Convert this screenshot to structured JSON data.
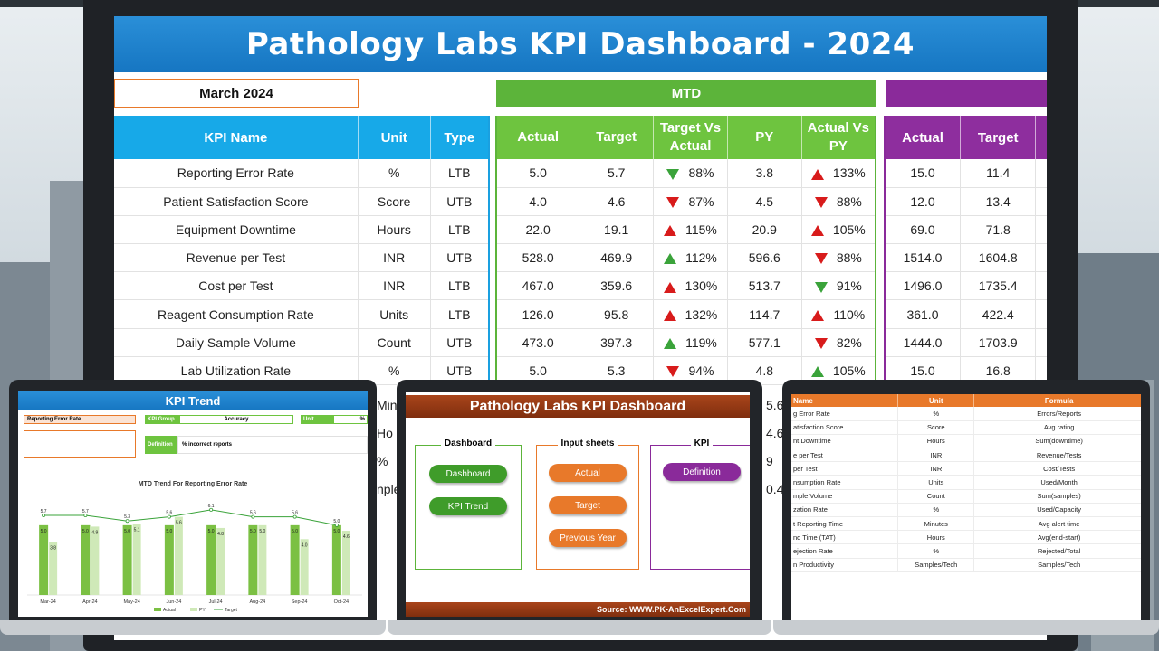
{
  "main": {
    "title": "Pathology Labs KPI Dashboard - 2024",
    "month": "March 2024",
    "mtd_label": "MTD",
    "headers": {
      "kpi_name": "KPI Name",
      "unit": "Unit",
      "type": "Type",
      "actual": "Actual",
      "target": "Target",
      "tvsa": "Target Vs Actual",
      "py": "PY",
      "avspy": "Actual Vs PY",
      "ytd_actual": "Actual",
      "ytd_target": "Target"
    },
    "rows": [
      {
        "name": "Reporting Error Rate",
        "unit": "%",
        "type": "LTB",
        "actual": "5.0",
        "target": "5.7",
        "tva_dir": "dn-g",
        "tva": "88%",
        "py": "3.8",
        "avp_dir": "up-r",
        "avp": "133%",
        "ya": "15.0",
        "yt": "11.4"
      },
      {
        "name": "Patient Satisfaction Score",
        "unit": "Score",
        "type": "UTB",
        "actual": "4.0",
        "target": "4.6",
        "tva_dir": "dn-r",
        "tva": "87%",
        "py": "4.5",
        "avp_dir": "dn-r",
        "avp": "88%",
        "ya": "12.0",
        "yt": "13.4"
      },
      {
        "name": "Equipment Downtime",
        "unit": "Hours",
        "type": "LTB",
        "actual": "22.0",
        "target": "19.1",
        "tva_dir": "up-r",
        "tva": "115%",
        "py": "20.9",
        "avp_dir": "up-r",
        "avp": "105%",
        "ya": "69.0",
        "yt": "71.8"
      },
      {
        "name": "Revenue per Test",
        "unit": "INR",
        "type": "UTB",
        "actual": "528.0",
        "target": "469.9",
        "tva_dir": "up-g",
        "tva": "112%",
        "py": "596.6",
        "avp_dir": "dn-r",
        "avp": "88%",
        "ya": "1514.0",
        "yt": "1604.8"
      },
      {
        "name": "Cost per Test",
        "unit": "INR",
        "type": "LTB",
        "actual": "467.0",
        "target": "359.6",
        "tva_dir": "up-r",
        "tva": "130%",
        "py": "513.7",
        "avp_dir": "dn-g",
        "avp": "91%",
        "ya": "1496.0",
        "yt": "1735.4"
      },
      {
        "name": "Reagent Consumption Rate",
        "unit": "Units",
        "type": "LTB",
        "actual": "126.0",
        "target": "95.8",
        "tva_dir": "up-r",
        "tva": "132%",
        "py": "114.7",
        "avp_dir": "up-r",
        "avp": "110%",
        "ya": "361.0",
        "yt": "422.4"
      },
      {
        "name": "Daily Sample Volume",
        "unit": "Count",
        "type": "UTB",
        "actual": "473.0",
        "target": "397.3",
        "tva_dir": "up-g",
        "tva": "119%",
        "py": "577.1",
        "avp_dir": "dn-r",
        "avp": "82%",
        "ya": "1444.0",
        "yt": "1703.9"
      },
      {
        "name": "Lab Utilization Rate",
        "unit": "%",
        "type": "UTB",
        "actual": "5.0",
        "target": "5.3",
        "tva_dir": "dn-r",
        "tva": "94%",
        "py": "4.8",
        "avp_dir": "up-g",
        "avp": "105%",
        "ya": "15.0",
        "yt": "16.8"
      }
    ],
    "peek": [
      "Min",
      "Ho",
      "%",
      "nple"
    ],
    "peek_right": [
      "5.6",
      "4.6",
      "9",
      "0.4"
    ]
  },
  "trend": {
    "title": "KPI Trend",
    "kpi_value": "Reporting Error Rate",
    "group_label": "KPI Group",
    "group_value": "Accuracy",
    "unit_label": "Unit",
    "unit_value": "%",
    "def_label": "Definition",
    "def_value": "% incorrect reports",
    "chart_title": "MTD Trend For Reporting Error Rate",
    "legend": [
      "Actual",
      "PY",
      "Target"
    ]
  },
  "chart_data": {
    "type": "bar",
    "title": "MTD Trend For Reporting Error Rate",
    "categories": [
      "Mar-24",
      "Apr-24",
      "May-24",
      "Jun-24",
      "Jul-24",
      "Aug-24",
      "Sep-24",
      "Oct-24"
    ],
    "series": [
      {
        "name": "Actual",
        "values": [
          5.0,
          5.0,
          5.0,
          5.0,
          5.0,
          5.0,
          5.0,
          5.0
        ]
      },
      {
        "name": "PY",
        "values": [
          3.8,
          4.9,
          5.1,
          5.6,
          4.8,
          5.0,
          4.0,
          4.6
        ]
      },
      {
        "name": "Target",
        "values": [
          5.7,
          5.7,
          5.3,
          5.6,
          6.1,
          5.6,
          5.6,
          5.0
        ]
      }
    ],
    "ylim": [
      0,
      7
    ]
  },
  "menu": {
    "title": "Pathology Labs KPI Dashboard",
    "groups": {
      "dashboard": "Dashboard",
      "input": "Input sheets",
      "kpi": "KPI"
    },
    "buttons": {
      "dashboard": "Dashboard",
      "trend": "KPI Trend",
      "actual": "Actual",
      "target": "Target",
      "prev": "Previous Year",
      "definition": "Definition"
    },
    "footer": "Source: WWW.PK-AnExcelExpert.Com"
  },
  "definition": {
    "headers": [
      "Name",
      "Unit",
      "Formula"
    ],
    "rows": [
      [
        "g Error Rate",
        "%",
        "Errors/Reports"
      ],
      [
        "atisfaction Score",
        "Score",
        "Avg rating"
      ],
      [
        "nt Downtime",
        "Hours",
        "Sum(downtime)"
      ],
      [
        "e per Test",
        "INR",
        "Revenue/Tests"
      ],
      [
        "per Test",
        "INR",
        "Cost/Tests"
      ],
      [
        "nsumption Rate",
        "Units",
        "Used/Month"
      ],
      [
        "mple Volume",
        "Count",
        "Sum(samples)"
      ],
      [
        "zation Rate",
        "%",
        "Used/Capacity"
      ],
      [
        "t Reporting Time",
        "Minutes",
        "Avg alert time"
      ],
      [
        "nd Time (TAT)",
        "Hours",
        "Avg(end-start)"
      ],
      [
        "ejection Rate",
        "%",
        "Rejected/Total"
      ],
      [
        "n Productivity",
        "Samples/Tech",
        "Samples/Tech"
      ]
    ]
  }
}
